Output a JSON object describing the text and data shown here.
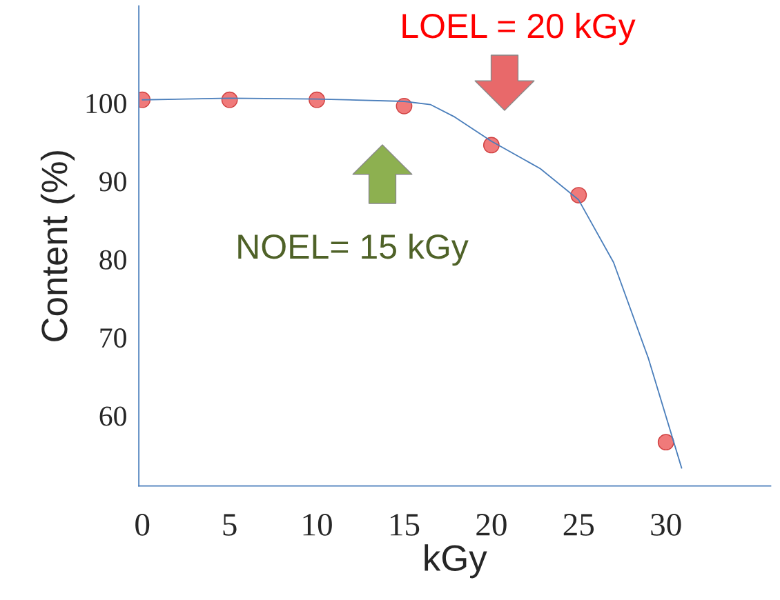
{
  "chart_data": {
    "type": "scatter",
    "xlabel": "kGy",
    "ylabel": "Content (%)",
    "x": [
      0,
      5,
      10,
      15,
      20,
      25,
      30
    ],
    "series": [
      {
        "marker": "circle",
        "color": "#f07a7a",
        "values": [
          100.4,
          100.4,
          100.4,
          99.6,
          94.6,
          88.2,
          56.6
        ]
      },
      {
        "type": "line",
        "marker": "none",
        "color": "#4a7ebb",
        "x": [
          0,
          5,
          10,
          15,
          16.5,
          17.9,
          20,
          22.8,
          25,
          27,
          29,
          30.9
        ],
        "values": [
          100.4,
          100.6,
          100.5,
          100.2,
          99.8,
          98.2,
          95.1,
          91.6,
          87.6,
          79.6,
          67.3,
          53.3
        ]
      }
    ],
    "grid": false,
    "xlim": [
      -0.2,
      36
    ],
    "ylim": [
      51,
      112.4
    ],
    "xticks": [
      0,
      5,
      10,
      15,
      20,
      25,
      30
    ],
    "yticks": [
      60,
      70,
      80,
      90,
      100
    ],
    "annotations": [
      "LOEL = 20 kGy",
      "NOEL= 15 kGy"
    ]
  }
}
